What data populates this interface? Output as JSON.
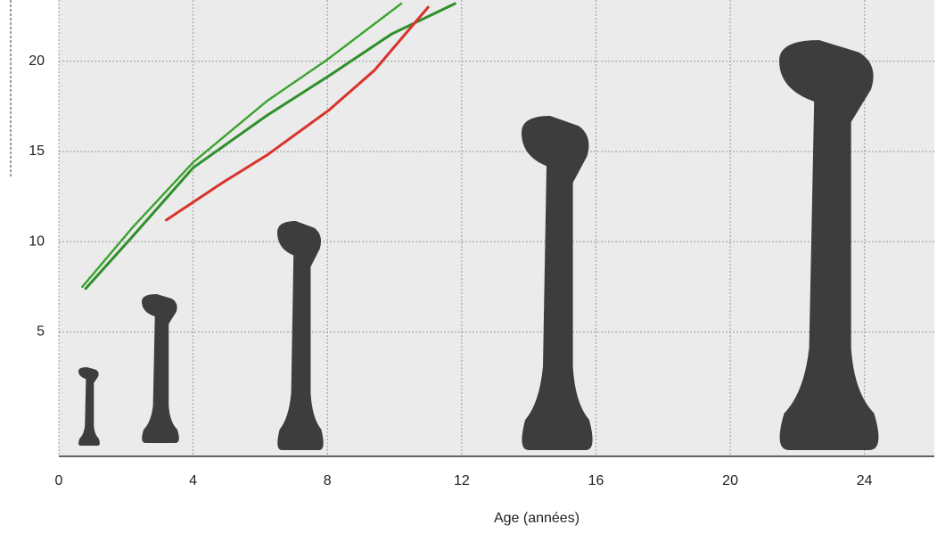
{
  "chart_data": {
    "type": "line",
    "x_label": "Age (années)",
    "xlim": [
      0,
      26
    ],
    "xticks": [
      0,
      4,
      8,
      12,
      16,
      20,
      24
    ],
    "ylim": [
      -1.9,
      23.4
    ],
    "yticks": [
      5,
      10,
      15,
      20
    ],
    "grid": true,
    "series": [
      {
        "color": "#3aa12e",
        "dashed": true,
        "x": [
          0.7,
          2.2,
          4,
          6.2,
          8,
          10.2
        ],
        "values": [
          7.5,
          10.8,
          14.4,
          17.8,
          20.1,
          23.2
        ]
      },
      {
        "color": "#2f8f2a",
        "dashed": false,
        "x": [
          0.8,
          2.2,
          4,
          6.2,
          8.05,
          9.9,
          11.8
        ],
        "values": [
          7.4,
          10.3,
          14.1,
          17.0,
          19.2,
          21.5,
          23.2
        ]
      },
      {
        "color": "#d9322b",
        "dashed": false,
        "x": [
          3.2,
          4.9,
          6.2,
          8.05,
          9.4,
          11
        ],
        "values": [
          11.2,
          13.3,
          14.8,
          17.3,
          19.5,
          23
        ]
      }
    ]
  }
}
